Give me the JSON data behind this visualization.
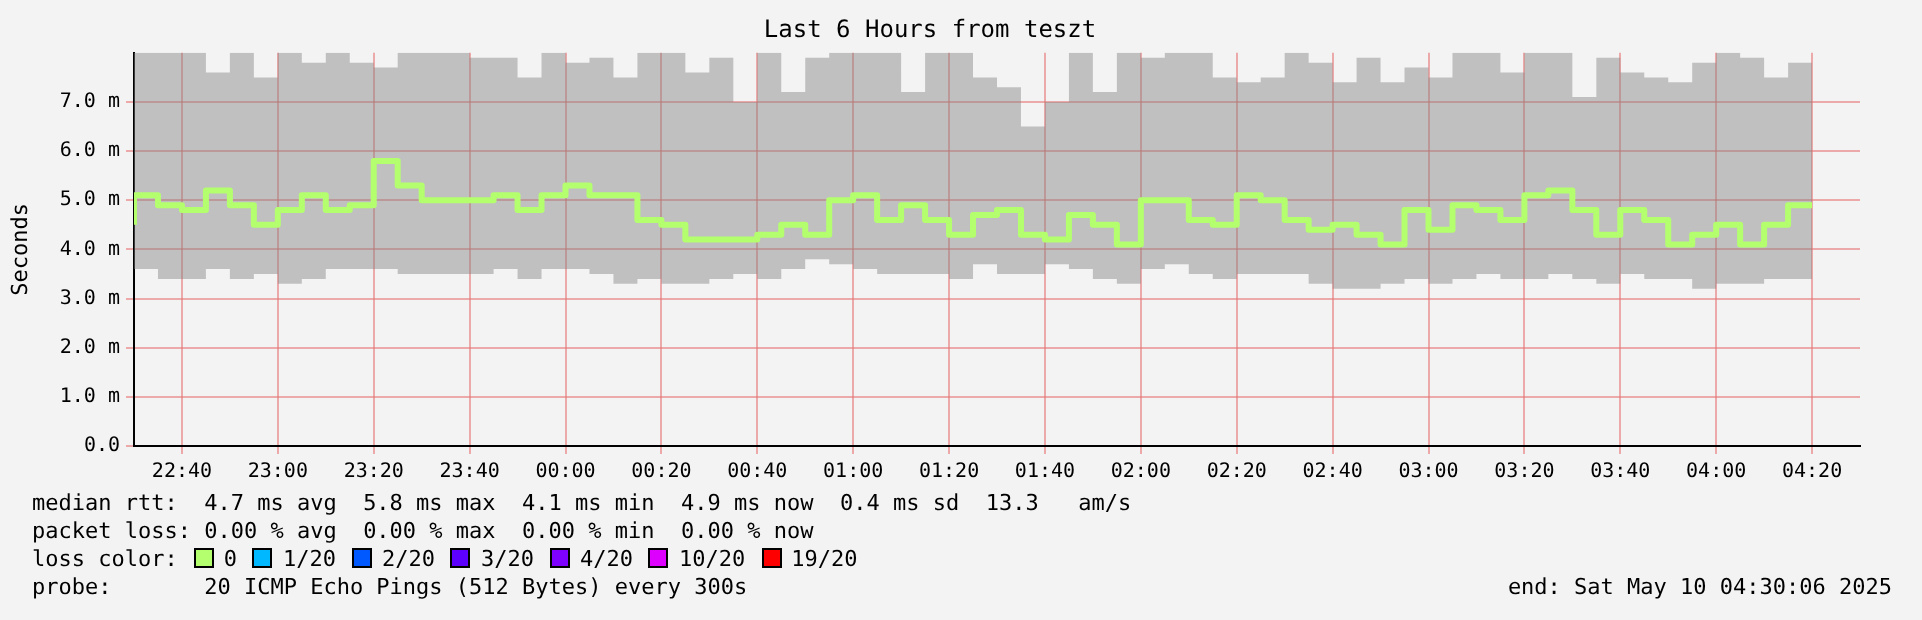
{
  "chart_data": {
    "type": "step",
    "title": "Last 6 Hours from teszt",
    "ylabel": "Seconds",
    "legend_title": "loss color:",
    "legend": "bottom",
    "grid": true,
    "marker": "none",
    "line_style": "solid",
    "x": [
      "2025-05-09T22:30",
      "2025-05-09T22:35",
      "2025-05-09T22:40",
      "2025-05-09T22:45",
      "2025-05-09T22:50",
      "2025-05-09T22:55",
      "2025-05-09T23:00",
      "2025-05-09T23:05",
      "2025-05-09T23:10",
      "2025-05-09T23:15",
      "2025-05-09T23:20",
      "2025-05-09T23:25",
      "2025-05-09T23:30",
      "2025-05-09T23:35",
      "2025-05-09T23:40",
      "2025-05-09T23:45",
      "2025-05-09T23:50",
      "2025-05-09T23:55",
      "2025-05-10T00:00",
      "2025-05-10T00:05",
      "2025-05-10T00:10",
      "2025-05-10T00:15",
      "2025-05-10T00:20",
      "2025-05-10T00:25",
      "2025-05-10T00:30",
      "2025-05-10T00:35",
      "2025-05-10T00:40",
      "2025-05-10T00:45",
      "2025-05-10T00:50",
      "2025-05-10T00:55",
      "2025-05-10T01:00",
      "2025-05-10T01:05",
      "2025-05-10T01:10",
      "2025-05-10T01:15",
      "2025-05-10T01:20",
      "2025-05-10T01:25",
      "2025-05-10T01:30",
      "2025-05-10T01:35",
      "2025-05-10T01:40",
      "2025-05-10T01:45",
      "2025-05-10T01:50",
      "2025-05-10T01:55",
      "2025-05-10T02:00",
      "2025-05-10T02:05",
      "2025-05-10T02:10",
      "2025-05-10T02:15",
      "2025-05-10T02:20",
      "2025-05-10T02:25",
      "2025-05-10T02:30",
      "2025-05-10T02:35",
      "2025-05-10T02:40",
      "2025-05-10T02:45",
      "2025-05-10T02:50",
      "2025-05-10T02:55",
      "2025-05-10T03:00",
      "2025-05-10T03:05",
      "2025-05-10T03:10",
      "2025-05-10T03:15",
      "2025-05-10T03:20",
      "2025-05-10T03:25",
      "2025-05-10T03:30",
      "2025-05-10T03:35",
      "2025-05-10T03:40",
      "2025-05-10T03:45",
      "2025-05-10T03:50",
      "2025-05-10T03:55",
      "2025-05-10T04:00",
      "2025-05-10T04:05",
      "2025-05-10T04:10",
      "2025-05-10T04:15",
      "2025-05-10T04:20"
    ],
    "xlim": [
      "2025-05-09T22:30",
      "2025-05-10T04:30"
    ],
    "xticks": [
      {
        "value": "2025-05-09T22:40",
        "label": "22:40"
      },
      {
        "value": "2025-05-09T23:00",
        "label": "23:00"
      },
      {
        "value": "2025-05-09T23:20",
        "label": "23:20"
      },
      {
        "value": "2025-05-09T23:40",
        "label": "23:40"
      },
      {
        "value": "2025-05-10T00:00",
        "label": "00:00"
      },
      {
        "value": "2025-05-10T00:20",
        "label": "00:20"
      },
      {
        "value": "2025-05-10T00:40",
        "label": "00:40"
      },
      {
        "value": "2025-05-10T01:00",
        "label": "01:00"
      },
      {
        "value": "2025-05-10T01:20",
        "label": "01:20"
      },
      {
        "value": "2025-05-10T01:40",
        "label": "01:40"
      },
      {
        "value": "2025-05-10T02:00",
        "label": "02:00"
      },
      {
        "value": "2025-05-10T02:20",
        "label": "02:20"
      },
      {
        "value": "2025-05-10T02:40",
        "label": "02:40"
      },
      {
        "value": "2025-05-10T03:00",
        "label": "03:00"
      },
      {
        "value": "2025-05-10T03:20",
        "label": "03:20"
      },
      {
        "value": "2025-05-10T03:40",
        "label": "03:40"
      },
      {
        "value": "2025-05-10T04:00",
        "label": "04:00"
      },
      {
        "value": "2025-05-10T04:20",
        "label": "04:20"
      }
    ],
    "ylim": [
      0,
      8
    ],
    "yticks": [
      {
        "value": 0,
        "label": "0.0"
      },
      {
        "value": 1,
        "label": "1.0 m"
      },
      {
        "value": 2,
        "label": "2.0 m"
      },
      {
        "value": 3,
        "label": "3.0 m"
      },
      {
        "value": 4,
        "label": "4.0 m"
      },
      {
        "value": 5,
        "label": "5.0 m"
      },
      {
        "value": 6,
        "label": "6.0 m"
      },
      {
        "value": 7,
        "label": "7.0 m"
      }
    ],
    "series": [
      {
        "name": "0",
        "color": "#b4ff6e",
        "values": [
          4.5,
          5.1,
          4.9,
          4.8,
          5.2,
          4.9,
          4.5,
          4.8,
          5.1,
          4.8,
          4.9,
          5.8,
          5.3,
          5.0,
          5.0,
          5.0,
          5.1,
          4.8,
          5.1,
          5.3,
          5.1,
          5.1,
          4.6,
          4.5,
          4.2,
          4.2,
          4.2,
          4.3,
          4.5,
          4.3,
          5.0,
          5.1,
          4.6,
          4.9,
          4.6,
          4.3,
          4.7,
          4.8,
          4.3,
          4.2,
          4.7,
          4.5,
          4.1,
          5.0,
          5.0,
          4.6,
          4.5,
          5.1,
          5.0,
          4.6,
          4.4,
          4.5,
          4.3,
          4.1,
          4.8,
          4.4,
          4.9,
          4.8,
          4.6,
          5.1,
          5.2,
          4.8,
          4.3,
          4.8,
          4.6,
          4.1,
          4.3,
          4.5,
          4.1,
          4.5,
          4.9
        ],
        "lower": [
          3.6,
          3.6,
          3.4,
          3.4,
          3.6,
          3.4,
          3.5,
          3.3,
          3.4,
          3.6,
          3.6,
          3.6,
          3.5,
          3.5,
          3.5,
          3.5,
          3.6,
          3.4,
          3.6,
          3.6,
          3.5,
          3.3,
          3.4,
          3.3,
          3.3,
          3.4,
          3.5,
          3.4,
          3.6,
          3.8,
          3.7,
          3.6,
          3.5,
          3.5,
          3.5,
          3.4,
          3.7,
          3.5,
          3.5,
          3.7,
          3.6,
          3.4,
          3.3,
          3.6,
          3.7,
          3.5,
          3.4,
          3.5,
          3.5,
          3.5,
          3.3,
          3.2,
          3.2,
          3.3,
          3.4,
          3.3,
          3.4,
          3.5,
          3.4,
          3.4,
          3.5,
          3.4,
          3.3,
          3.5,
          3.4,
          3.4,
          3.2,
          3.3,
          3.3,
          3.4,
          3.4
        ],
        "upper": [
          7.6,
          8.0,
          8.0,
          8.0,
          7.6,
          8.0,
          7.5,
          8.0,
          7.8,
          8.0,
          7.8,
          7.7,
          8.0,
          8.0,
          8.0,
          7.9,
          7.9,
          7.5,
          8.0,
          7.8,
          7.9,
          7.5,
          8.0,
          8.0,
          7.6,
          7.9,
          7.0,
          8.0,
          7.2,
          7.9,
          8.0,
          8.0,
          8.0,
          7.2,
          8.0,
          8.0,
          7.5,
          7.3,
          6.5,
          7.0,
          8.0,
          7.2,
          8.0,
          7.9,
          8.0,
          8.0,
          7.5,
          7.4,
          7.5,
          8.0,
          7.8,
          7.4,
          7.9,
          7.4,
          7.7,
          7.5,
          8.0,
          8.0,
          7.6,
          8.0,
          8.0,
          7.1,
          7.9,
          7.6,
          7.5,
          7.4,
          7.8,
          8.0,
          7.9,
          7.5,
          7.8
        ]
      },
      {
        "name": "1/20",
        "color": "#00b8ff",
        "values": [
          null,
          null,
          null,
          null,
          null,
          null,
          null,
          null,
          null,
          null,
          null,
          null,
          null,
          null,
          null,
          null,
          null,
          null,
          null,
          null,
          null,
          null,
          null,
          null,
          null,
          null,
          null,
          null,
          null,
          null,
          null,
          null,
          null,
          null,
          null,
          null,
          null,
          null,
          null,
          null,
          null,
          null,
          null,
          null,
          null,
          null,
          null,
          null,
          null,
          null,
          null,
          null,
          null,
          null,
          null,
          null,
          null,
          null,
          null,
          null,
          null,
          null,
          null,
          null,
          null,
          null,
          null,
          null,
          null,
          null,
          null
        ]
      },
      {
        "name": "2/20",
        "color": "#0059ff",
        "values": [
          null,
          null,
          null,
          null,
          null,
          null,
          null,
          null,
          null,
          null,
          null,
          null,
          null,
          null,
          null,
          null,
          null,
          null,
          null,
          null,
          null,
          null,
          null,
          null,
          null,
          null,
          null,
          null,
          null,
          null,
          null,
          null,
          null,
          null,
          null,
          null,
          null,
          null,
          null,
          null,
          null,
          null,
          null,
          null,
          null,
          null,
          null,
          null,
          null,
          null,
          null,
          null,
          null,
          null,
          null,
          null,
          null,
          null,
          null,
          null,
          null,
          null,
          null,
          null,
          null,
          null,
          null,
          null,
          null,
          null,
          null
        ]
      },
      {
        "name": "3/20",
        "color": "#5e00ff",
        "values": [
          null,
          null,
          null,
          null,
          null,
          null,
          null,
          null,
          null,
          null,
          null,
          null,
          null,
          null,
          null,
          null,
          null,
          null,
          null,
          null,
          null,
          null,
          null,
          null,
          null,
          null,
          null,
          null,
          null,
          null,
          null,
          null,
          null,
          null,
          null,
          null,
          null,
          null,
          null,
          null,
          null,
          null,
          null,
          null,
          null,
          null,
          null,
          null,
          null,
          null,
          null,
          null,
          null,
          null,
          null,
          null,
          null,
          null,
          null,
          null,
          null,
          null,
          null,
          null,
          null,
          null,
          null,
          null,
          null,
          null,
          null
        ]
      },
      {
        "name": "4/20",
        "color": "#7e00ff",
        "values": [
          null,
          null,
          null,
          null,
          null,
          null,
          null,
          null,
          null,
          null,
          null,
          null,
          null,
          null,
          null,
          null,
          null,
          null,
          null,
          null,
          null,
          null,
          null,
          null,
          null,
          null,
          null,
          null,
          null,
          null,
          null,
          null,
          null,
          null,
          null,
          null,
          null,
          null,
          null,
          null,
          null,
          null,
          null,
          null,
          null,
          null,
          null,
          null,
          null,
          null,
          null,
          null,
          null,
          null,
          null,
          null,
          null,
          null,
          null,
          null,
          null,
          null,
          null,
          null,
          null,
          null,
          null,
          null,
          null,
          null,
          null
        ]
      },
      {
        "name": "10/20",
        "color": "#dd00ff",
        "values": [
          null,
          null,
          null,
          null,
          null,
          null,
          null,
          null,
          null,
          null,
          null,
          null,
          null,
          null,
          null,
          null,
          null,
          null,
          null,
          null,
          null,
          null,
          null,
          null,
          null,
          null,
          null,
          null,
          null,
          null,
          null,
          null,
          null,
          null,
          null,
          null,
          null,
          null,
          null,
          null,
          null,
          null,
          null,
          null,
          null,
          null,
          null,
          null,
          null,
          null,
          null,
          null,
          null,
          null,
          null,
          null,
          null,
          null,
          null,
          null,
          null,
          null,
          null,
          null,
          null,
          null,
          null,
          null,
          null,
          null,
          null
        ]
      },
      {
        "name": "19/20",
        "color": "#ff0000",
        "values": [
          null,
          null,
          null,
          null,
          null,
          null,
          null,
          null,
          null,
          null,
          null,
          null,
          null,
          null,
          null,
          null,
          null,
          null,
          null,
          null,
          null,
          null,
          null,
          null,
          null,
          null,
          null,
          null,
          null,
          null,
          null,
          null,
          null,
          null,
          null,
          null,
          null,
          null,
          null,
          null,
          null,
          null,
          null,
          null,
          null,
          null,
          null,
          null,
          null,
          null,
          null,
          null,
          null,
          null,
          null,
          null,
          null,
          null,
          null,
          null,
          null,
          null,
          null,
          null,
          null,
          null,
          null,
          null,
          null,
          null,
          null
        ]
      }
    ],
    "annotations": [
      "median rtt:  4.7 ms avg  5.8 ms max  4.1 ms min  4.9 ms now  0.4 ms sd  13.3   am/s",
      "packet loss: 0.00 % avg  0.00 % max  0.00 % min  0.00 % now",
      "probe:       20 ICMP Echo Pings (512 Bytes) every 300s",
      "end: Sat May 10 04:30:06 2025"
    ]
  }
}
